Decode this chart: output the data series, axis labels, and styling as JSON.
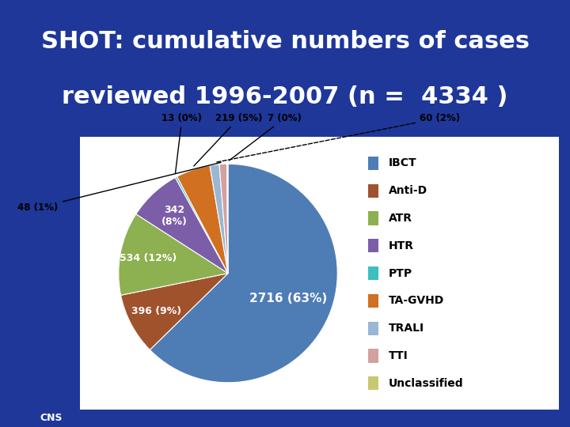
{
  "title_line1": "SHOT: cumulative numbers of cases",
  "title_line2": "reviewed 1996-2007 (n =  4334 )",
  "background_color": "#1e3799",
  "chart_background": "#ffffff",
  "slices": [
    {
      "label": "IBCT",
      "value": 2716,
      "pct": "63%",
      "color": "#4e7db5"
    },
    {
      "label": "Anti-D",
      "value": 396,
      "pct": "9%",
      "color": "#a0522d"
    },
    {
      "label": "ATR",
      "value": 534,
      "pct": "12%",
      "color": "#8db050"
    },
    {
      "label": "HTR",
      "value": 342,
      "pct": "8%",
      "color": "#7b5ea7"
    },
    {
      "label": "PTP",
      "value": 13,
      "pct": "0%",
      "color": "#3bbfbf"
    },
    {
      "label": "TA-GVHD",
      "value": 219,
      "pct": "5%",
      "color": "#d07020"
    },
    {
      "label": "TRALI",
      "value": 60,
      "pct": "2%",
      "color": "#9ab7d3"
    },
    {
      "label": "TTI",
      "value": 48,
      "pct": "1%",
      "color": "#d4a0a0"
    },
    {
      "label": "Unclassified",
      "value": 7,
      "pct": "0%",
      "color": "#c8c870"
    }
  ],
  "title_color": "#ffffff",
  "title_fontsize": 22,
  "cns_text": "CNS"
}
